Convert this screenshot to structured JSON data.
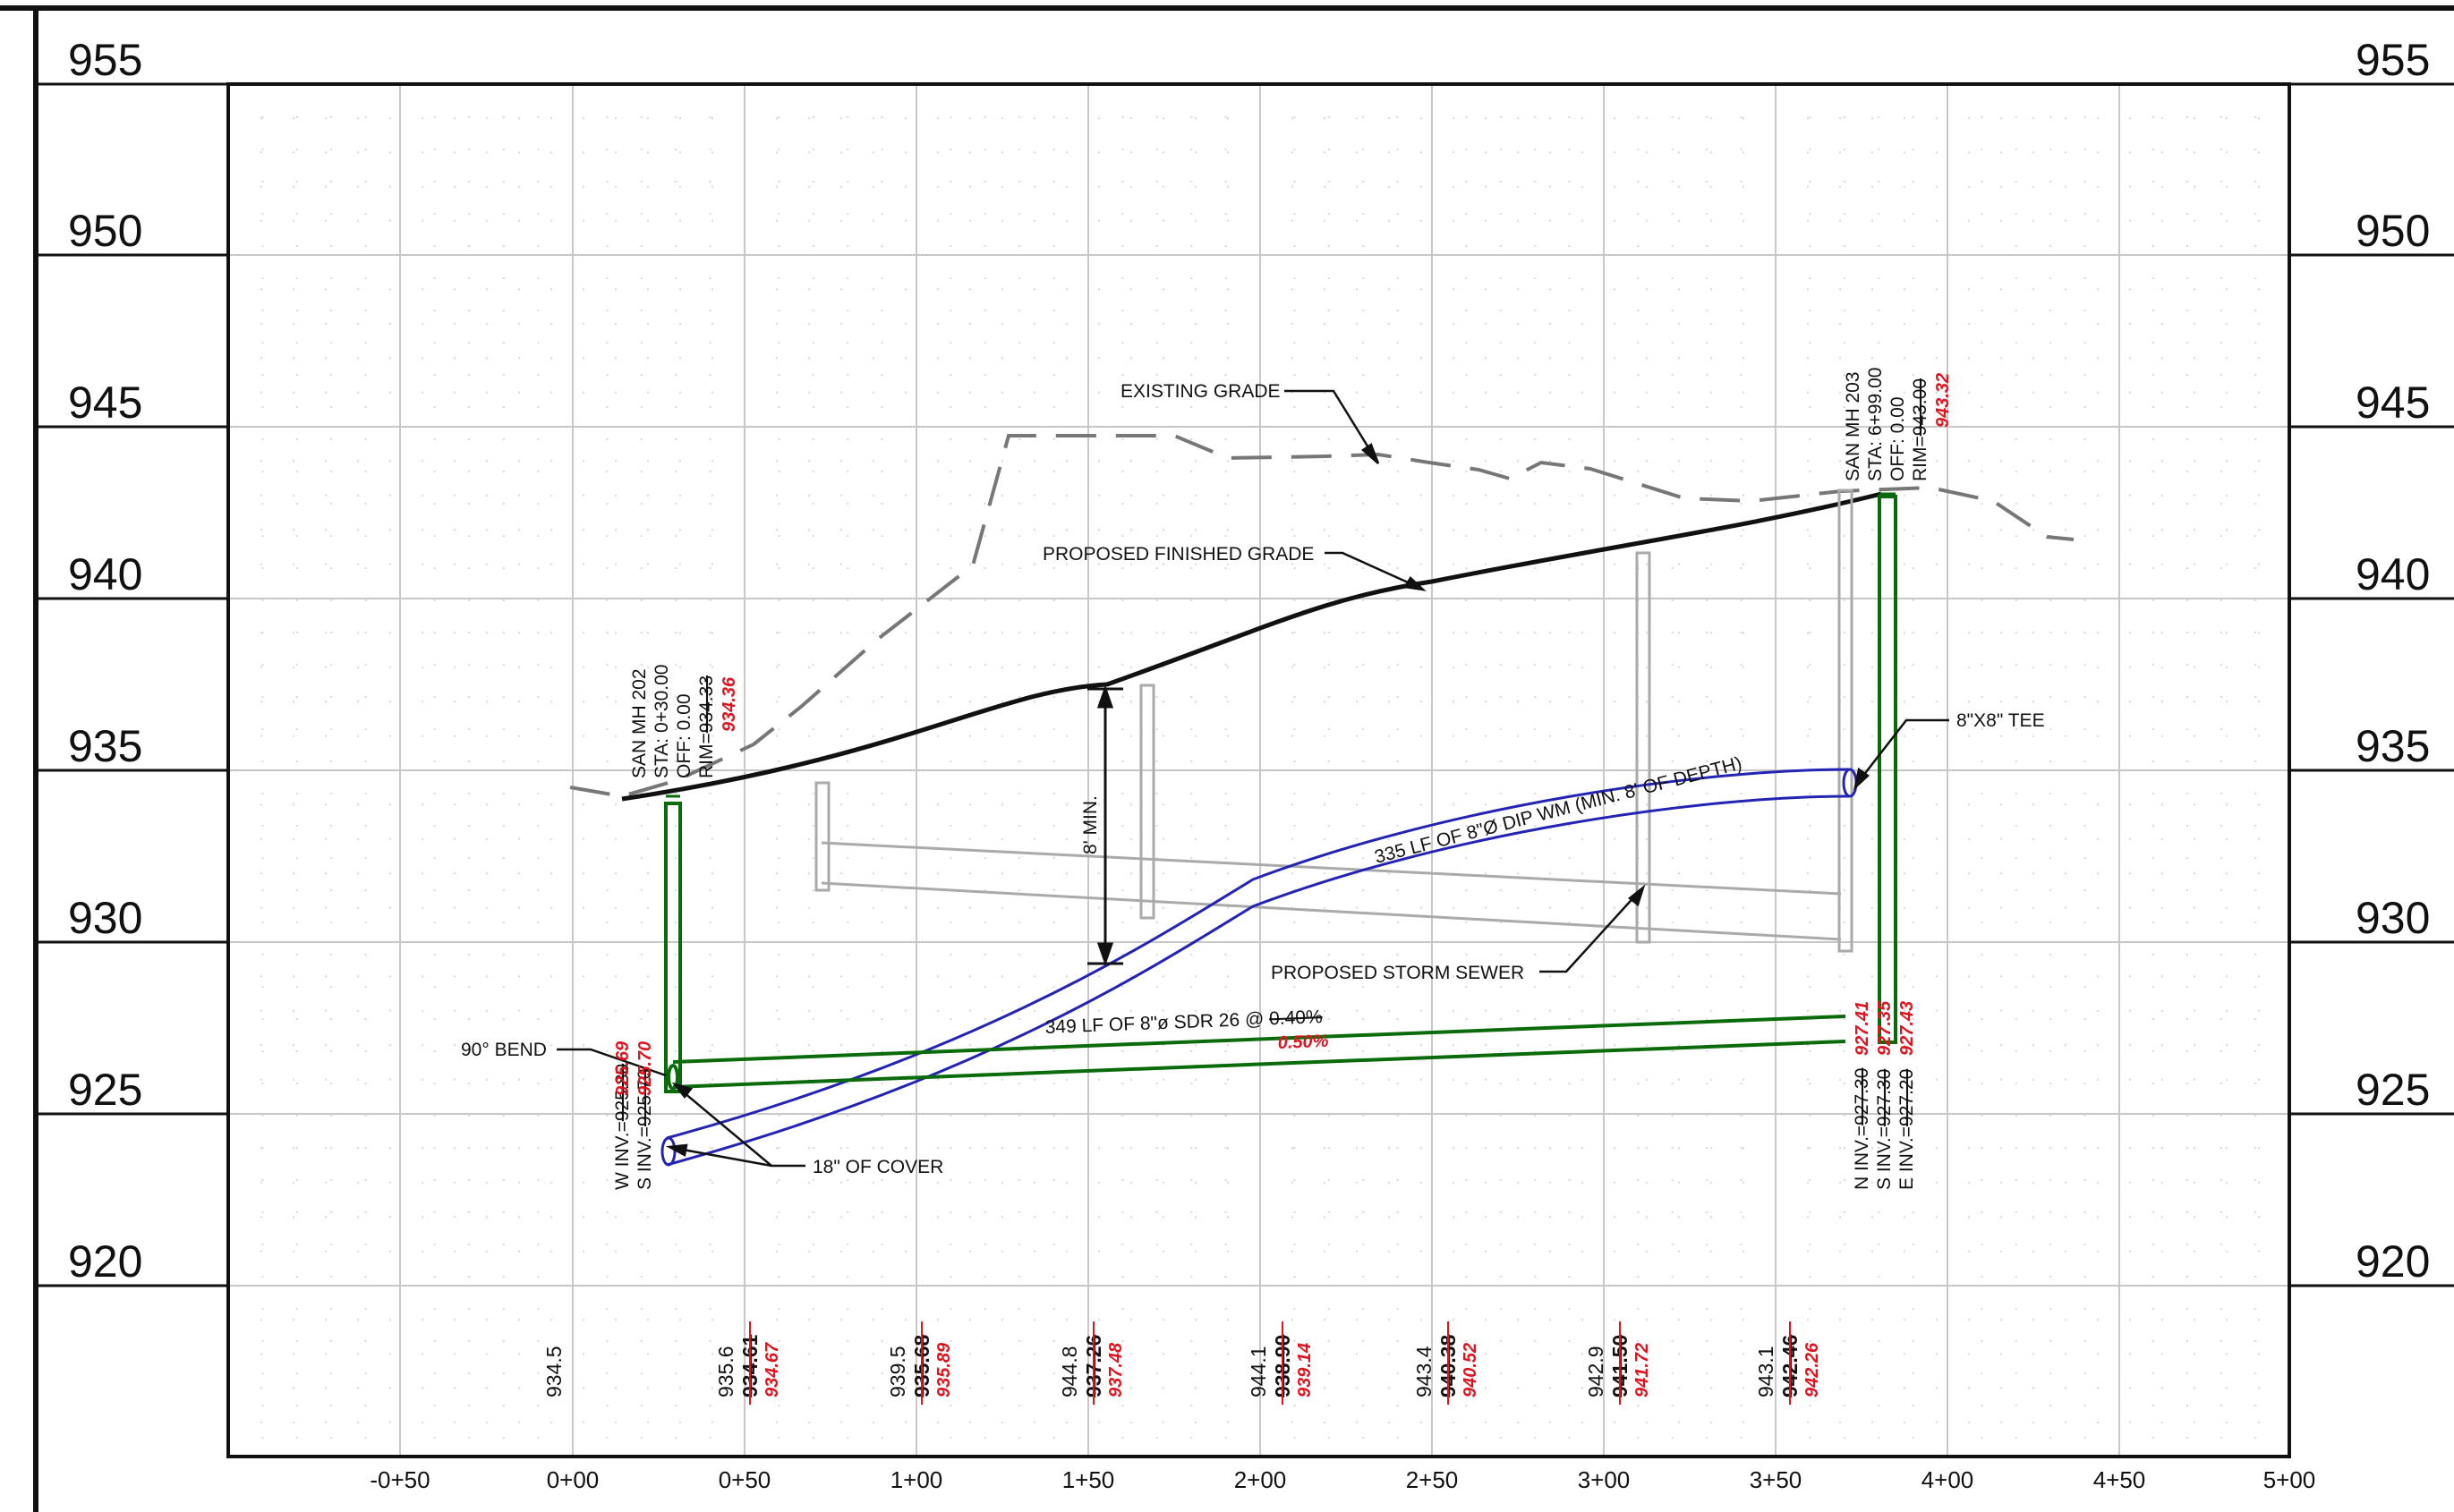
{
  "elevation_labels": [
    "955",
    "950",
    "945",
    "940",
    "935",
    "930",
    "925",
    "920"
  ],
  "station_labels": [
    "-0+50",
    "0+00",
    "0+50",
    "1+00",
    "1+50",
    "2+00",
    "2+50",
    "3+00",
    "3+50",
    "4+00",
    "4+50",
    "5+00"
  ],
  "grade_values": [
    {
      "existing": "934.5",
      "proposed_old": "",
      "proposed_new": ""
    },
    {
      "existing": "935.6",
      "proposed_old": "934.61",
      "proposed_new": "934.67"
    },
    {
      "existing": "939.5",
      "proposed_old": "935.68",
      "proposed_new": "935.89"
    },
    {
      "existing": "944.8",
      "proposed_old": "937.26",
      "proposed_new": "937.48"
    },
    {
      "existing": "944.1",
      "proposed_old": "938.90",
      "proposed_new": "939.14"
    },
    {
      "existing": "943.4",
      "proposed_old": "940.38",
      "proposed_new": "940.52"
    },
    {
      "existing": "942.9",
      "proposed_old": "941.50",
      "proposed_new": "941.72"
    },
    {
      "existing": "943.1",
      "proposed_old": "942.46",
      "proposed_new": "942.26"
    }
  ],
  "mh202": {
    "name": "SAN MH 202",
    "sta": "STA: 0+30.00",
    "off": "OFF: 0.00",
    "rim_prefix": "RIM=",
    "rim_old": "934.33",
    "rim_new": "934.36",
    "w_inv_prefix": "W INV.=",
    "w_inv_old": "925.80",
    "w_inv_new": "925.69",
    "s_inv_prefix": "S INV.=",
    "s_inv_old": "925.70",
    "s_inv_new": "925.70"
  },
  "mh203": {
    "name": "SAN MH 203",
    "sta": "STA: 6+99.00",
    "off": "OFF: 0.00",
    "rim_prefix": "RIM=",
    "rim_old": "943.00",
    "rim_new": "943.32",
    "n_inv_prefix": "N INV.=",
    "n_inv_old": "927.30",
    "n_inv_new": "927.41",
    "s_inv_prefix": "S INV.=",
    "s_inv_old": "927.30",
    "s_inv_new": "927.35",
    "e_inv_prefix": "E INV.=",
    "e_inv_old": "927.20",
    "e_inv_new": "927.43"
  },
  "annotations": {
    "existing_grade": "EXISTING GRADE",
    "proposed_grade": "PROPOSED FINISHED GRADE",
    "tee": "8\"X8\" TEE",
    "watermain": "335 LF OF 8\"Ø DIP WM (MIN. 8' OF DEPTH)",
    "storm": "PROPOSED STORM SEWER",
    "sanitary": "349 LF OF 8\"ø  SDR 26 @ ",
    "sanitary_old_slope": "0.40%",
    "sanitary_new_slope": "0.50%",
    "bend": "90° BEND",
    "cover": "18\" OF COVER",
    "min_depth": "8' MIN."
  },
  "colors": {
    "sanitary": "#0b6b0b",
    "watermain": "#2424b4",
    "revision": "#e0141e",
    "existing_grade": "#777777",
    "storm": "#aaaaaa"
  }
}
